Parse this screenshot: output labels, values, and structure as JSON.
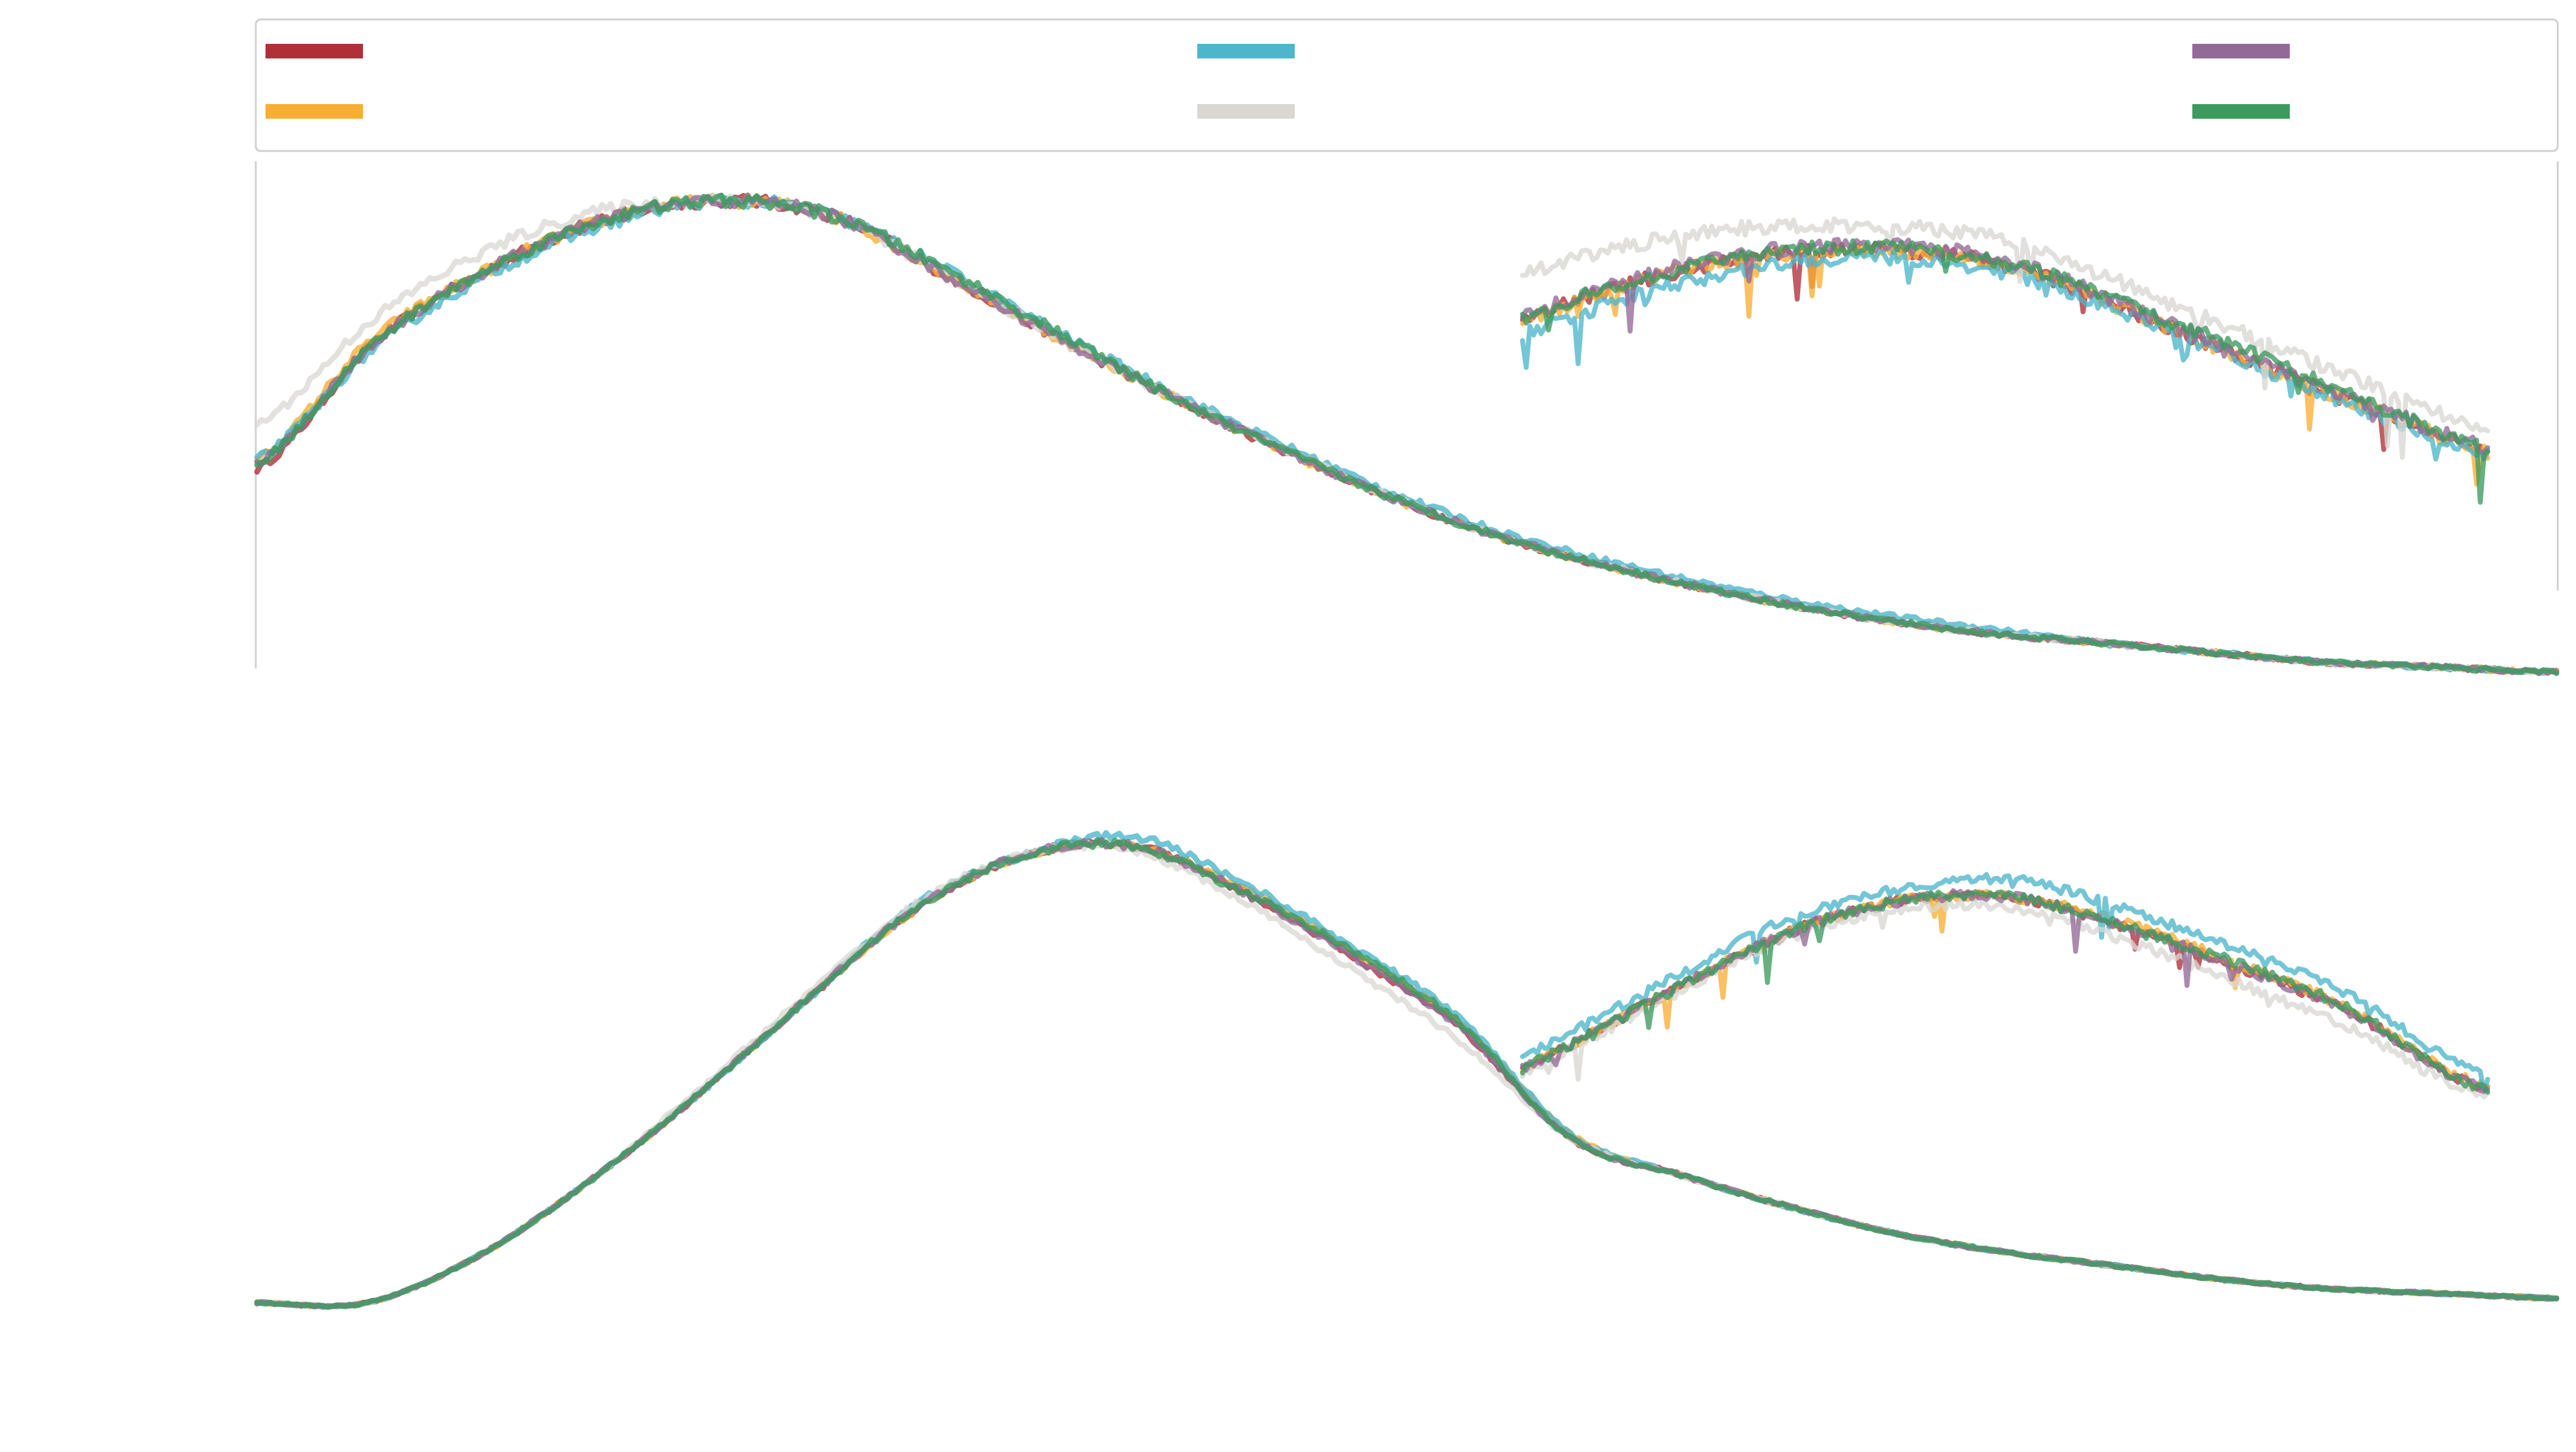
{
  "chart_data": [
    {
      "type": "line",
      "panel": "top",
      "title": "",
      "xlabel": "",
      "ylabel": "",
      "xlim": [
        0,
        1
      ],
      "ylim": [
        0,
        1
      ],
      "grid": false,
      "legend_location": "top",
      "series": [
        {
          "color": "#b03038",
          "values": [
            0.46,
            0.71,
            0.86,
            0.96,
            1.0,
            0.97,
            0.85,
            0.72,
            0.6,
            0.49,
            0.39,
            0.31,
            0.25,
            0.2,
            0.16,
            0.13,
            0.11,
            0.09,
            0.07,
            0.06,
            0.05
          ]
        },
        {
          "color": "#f8ae34",
          "values": [
            0.48,
            0.72,
            0.86,
            0.96,
            1.0,
            0.97,
            0.85,
            0.72,
            0.6,
            0.49,
            0.39,
            0.31,
            0.25,
            0.2,
            0.16,
            0.13,
            0.11,
            0.09,
            0.07,
            0.06,
            0.05
          ]
        },
        {
          "color": "#4db6cb",
          "values": [
            0.48,
            0.7,
            0.85,
            0.95,
            1.0,
            0.97,
            0.86,
            0.73,
            0.61,
            0.5,
            0.4,
            0.32,
            0.26,
            0.21,
            0.17,
            0.14,
            0.11,
            0.09,
            0.07,
            0.06,
            0.05
          ]
        },
        {
          "color": "#d9d7d2",
          "values": [
            0.55,
            0.76,
            0.9,
            0.98,
            1.0,
            0.97,
            0.85,
            0.72,
            0.6,
            0.49,
            0.39,
            0.31,
            0.25,
            0.2,
            0.16,
            0.13,
            0.11,
            0.09,
            0.07,
            0.06,
            0.05
          ]
        },
        {
          "color": "#936a96",
          "values": [
            0.47,
            0.71,
            0.86,
            0.96,
            1.0,
            0.97,
            0.85,
            0.72,
            0.6,
            0.49,
            0.39,
            0.31,
            0.25,
            0.2,
            0.16,
            0.13,
            0.11,
            0.09,
            0.07,
            0.06,
            0.05
          ]
        },
        {
          "color": "#3c9a5f",
          "values": [
            0.47,
            0.71,
            0.86,
            0.96,
            1.0,
            0.97,
            0.86,
            0.73,
            0.6,
            0.49,
            0.39,
            0.31,
            0.25,
            0.2,
            0.16,
            0.13,
            0.11,
            0.09,
            0.07,
            0.06,
            0.05
          ]
        }
      ]
    },
    {
      "type": "line",
      "panel": "bottom",
      "title": "",
      "xlabel": "",
      "ylabel": "",
      "xlim": [
        0,
        1
      ],
      "ylim": [
        0,
        1
      ],
      "grid": false,
      "series": [
        {
          "color": "#b03038",
          "values": [
            0.0,
            0.0,
            0.1,
            0.26,
            0.45,
            0.66,
            0.86,
            0.98,
            1.0,
            0.9,
            0.76,
            0.6,
            0.36,
            0.28,
            0.21,
            0.15,
            0.11,
            0.08,
            0.05,
            0.03,
            0.02,
            0.01
          ]
        },
        {
          "color": "#f8ae34",
          "values": [
            0.0,
            0.0,
            0.1,
            0.26,
            0.45,
            0.66,
            0.86,
            0.98,
            1.0,
            0.91,
            0.77,
            0.61,
            0.37,
            0.28,
            0.21,
            0.15,
            0.11,
            0.08,
            0.05,
            0.03,
            0.02,
            0.01
          ]
        },
        {
          "color": "#4db6cb",
          "values": [
            0.0,
            0.0,
            0.1,
            0.26,
            0.45,
            0.66,
            0.87,
            0.98,
            1.02,
            0.92,
            0.78,
            0.62,
            0.37,
            0.28,
            0.21,
            0.15,
            0.11,
            0.08,
            0.05,
            0.03,
            0.02,
            0.01
          ]
        },
        {
          "color": "#d9d7d2",
          "values": [
            0.0,
            0.0,
            0.1,
            0.26,
            0.46,
            0.67,
            0.87,
            0.98,
            0.99,
            0.88,
            0.73,
            0.57,
            0.36,
            0.28,
            0.21,
            0.15,
            0.11,
            0.08,
            0.05,
            0.03,
            0.02,
            0.01
          ]
        },
        {
          "color": "#936a96",
          "values": [
            0.0,
            0.0,
            0.1,
            0.26,
            0.45,
            0.66,
            0.86,
            0.98,
            1.0,
            0.9,
            0.76,
            0.6,
            0.36,
            0.28,
            0.21,
            0.15,
            0.11,
            0.08,
            0.05,
            0.03,
            0.02,
            0.01
          ]
        },
        {
          "color": "#3c9a5f",
          "values": [
            0.0,
            0.0,
            0.1,
            0.26,
            0.45,
            0.66,
            0.86,
            0.98,
            1.0,
            0.9,
            0.77,
            0.61,
            0.36,
            0.28,
            0.21,
            0.15,
            0.11,
            0.08,
            0.05,
            0.03,
            0.02,
            0.01
          ]
        }
      ]
    }
  ],
  "legend": {
    "entries": [
      {
        "label": "",
        "color": "#b03038"
      },
      {
        "label": "",
        "color": "#4db6cb"
      },
      {
        "label": "",
        "color": "#936a96"
      },
      {
        "label": "",
        "color": "#f8ae34"
      },
      {
        "label": "",
        "color": "#d9d7d2"
      },
      {
        "label": "",
        "color": "#3c9a5f"
      }
    ]
  }
}
